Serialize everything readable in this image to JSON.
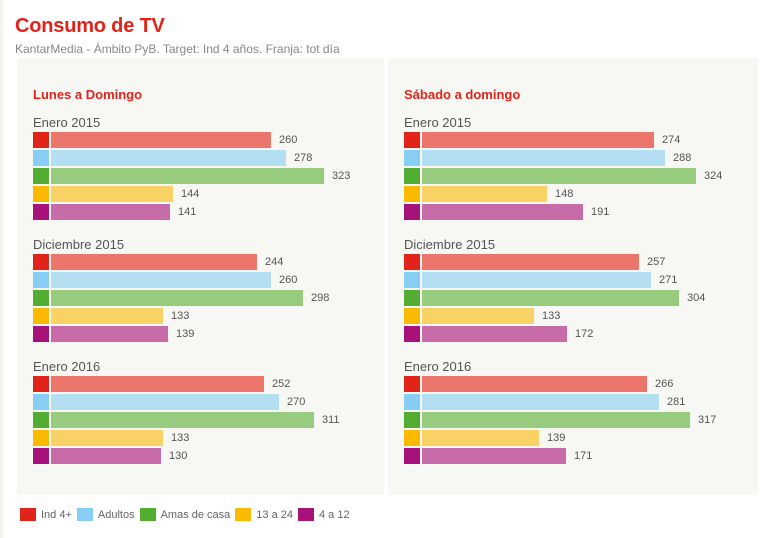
{
  "header": {
    "title": "Consumo de TV",
    "subtitle": "KantarMedia - Ámbito PyB. Target: Ind 4 años. Franja: tot día"
  },
  "colors": {
    "accent": "#e2231a",
    "swatches": [
      "#e2231a",
      "#86cef4",
      "#53ad32",
      "#fbba00",
      "#a6117a"
    ],
    "bars": [
      "#ec766b",
      "#b4dff3",
      "#97cb7e",
      "#f9d266",
      "#c86ba9"
    ]
  },
  "chart_data": [
    {
      "type": "bar",
      "orientation": "horizontal",
      "title": "Lunes a Domingo",
      "categories": [
        "Enero 2015",
        "Diciembre 2015",
        "Enero 2016"
      ],
      "series": [
        {
          "name": "Ind 4+",
          "values": [
            260,
            244,
            252
          ]
        },
        {
          "name": "Adultos",
          "values": [
            278,
            260,
            270
          ]
        },
        {
          "name": "Amas de casa",
          "values": [
            323,
            298,
            311
          ]
        },
        {
          "name": "13 a 24",
          "values": [
            144,
            133,
            133
          ]
        },
        {
          "name": "4 a 12",
          "values": [
            141,
            139,
            130
          ]
        }
      ],
      "xlim": [
        0,
        340
      ],
      "grid": false,
      "data_labels": true
    },
    {
      "type": "bar",
      "orientation": "horizontal",
      "title": "Sábado a domingo",
      "categories": [
        "Enero 2015",
        "Diciembre 2015",
        "Enero 2016"
      ],
      "series": [
        {
          "name": "Ind 4+",
          "values": [
            274,
            257,
            266
          ]
        },
        {
          "name": "Adultos",
          "values": [
            288,
            271,
            281
          ]
        },
        {
          "name": "Amas de casa",
          "values": [
            324,
            304,
            317
          ]
        },
        {
          "name": "13 a 24",
          "values": [
            148,
            133,
            139
          ]
        },
        {
          "name": "4 a 12",
          "values": [
            191,
            172,
            171
          ]
        }
      ],
      "xlim": [
        0,
        340
      ],
      "grid": false,
      "data_labels": true
    }
  ],
  "legend": {
    "placement": "bottom-left",
    "items": [
      "Ind 4+",
      "Adultos",
      "Amas de casa",
      "13 a 24",
      "4 a 12"
    ]
  }
}
